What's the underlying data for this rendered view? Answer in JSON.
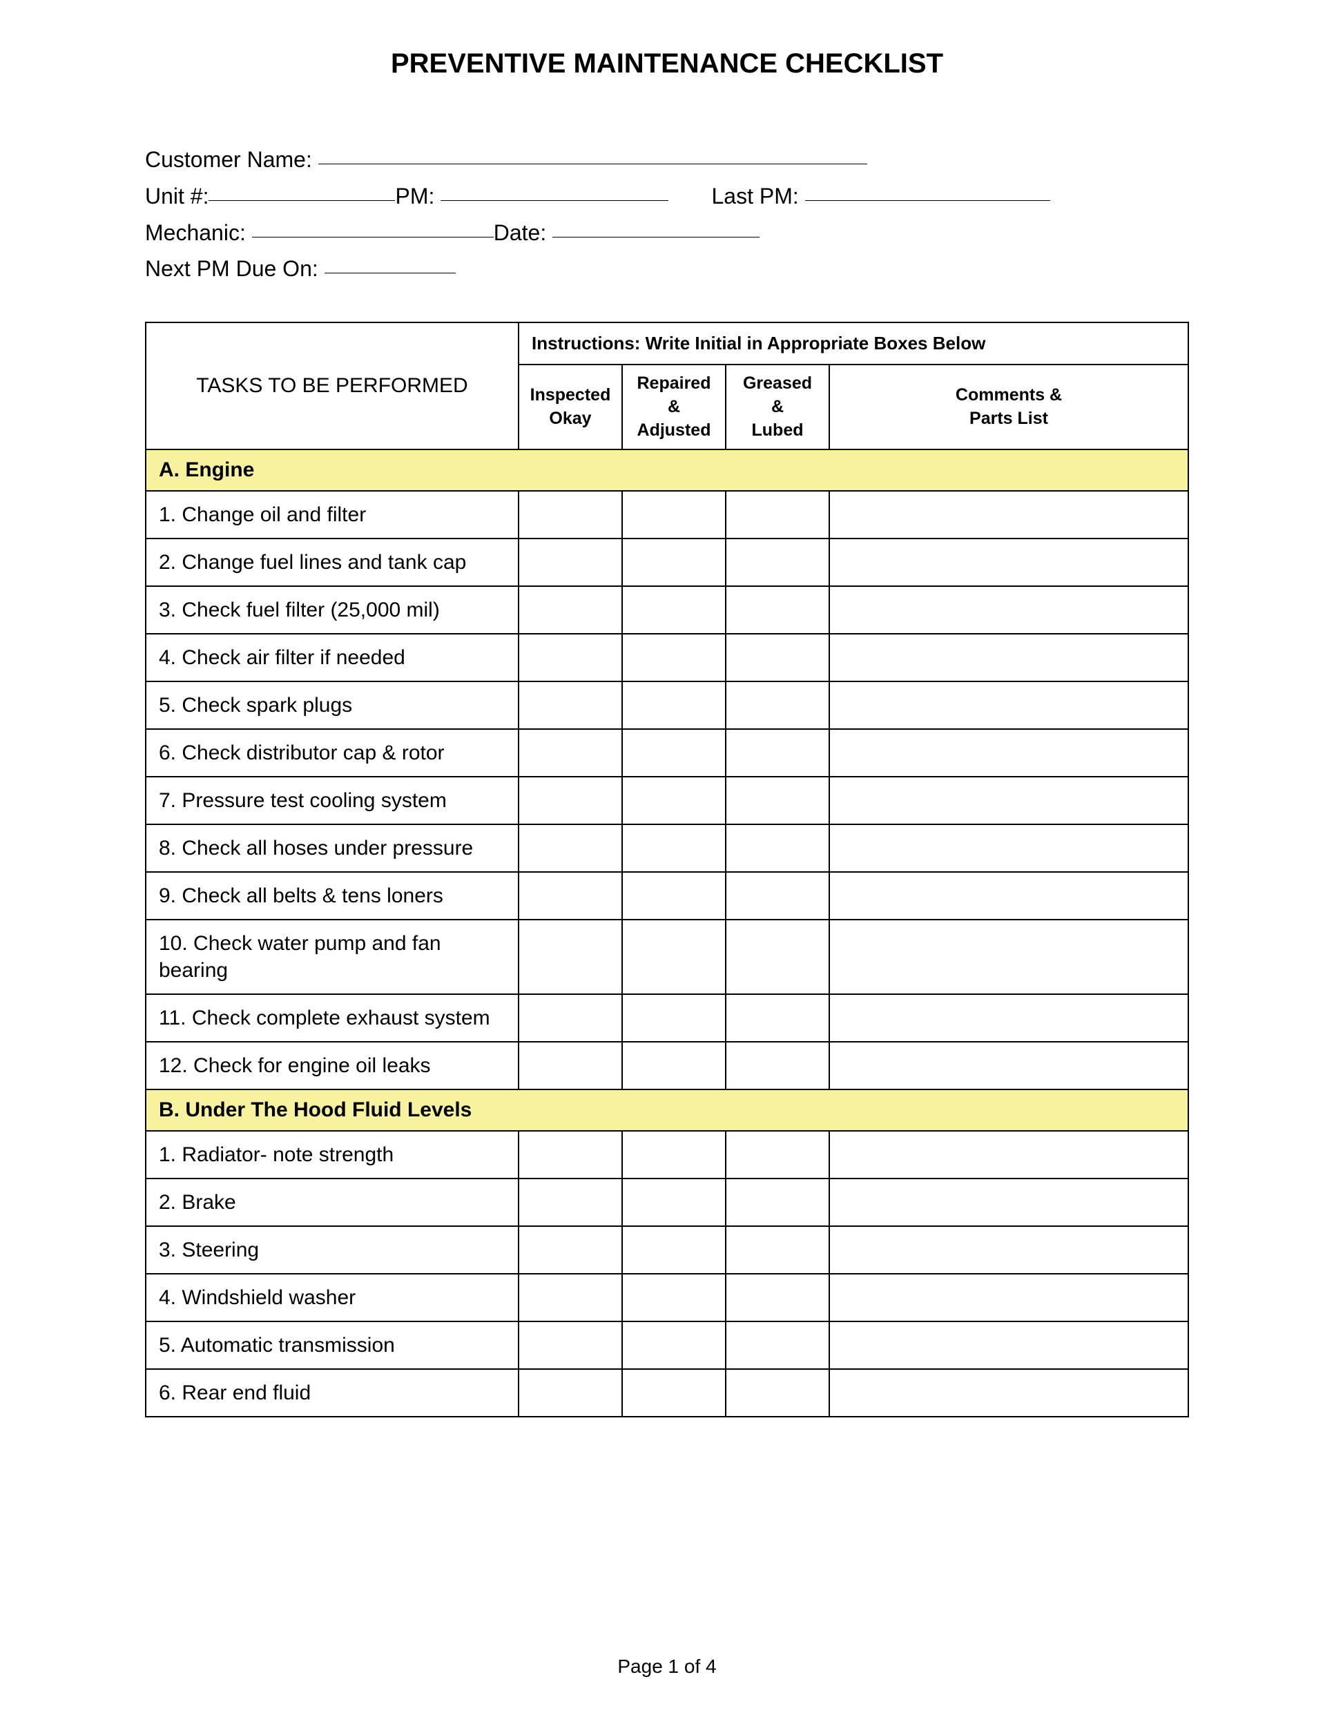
{
  "title": "PREVENTIVE MAINTENANCE CHECKLIST",
  "form": {
    "customer_name_label": "Customer Name: ",
    "unit_label": "Unit #:",
    "pm_label": "PM: ",
    "last_pm_label": "Last PM: ",
    "mechanic_label": "Mechanic: ",
    "date_label": "Date: ",
    "next_pm_label": "Next PM Due On: "
  },
  "table": {
    "instructions": "Instructions:  Write Initial in Appropriate Boxes Below",
    "header_tasks": "TASKS TO BE PERFORMED",
    "header_inspected_l1": "Inspected",
    "header_inspected_l2": "Okay",
    "header_repaired_l1": "Repaired",
    "header_repaired_l2": "&",
    "header_repaired_l3": "Adjusted",
    "header_greased_l1": "Greased",
    "header_greased_l2": "&",
    "header_greased_l3": "Lubed",
    "header_comments_l1": "Comments &",
    "header_comments_l2": "Parts List",
    "sections": [
      {
        "heading": "A. Engine",
        "items": [
          "1.  Change oil and filter",
          "2.  Change fuel lines and tank cap",
          "3.  Check fuel filter (25,000 mil)",
          "4.  Check air filter if needed",
          "5.  Check spark plugs",
          "6.  Check distributor cap & rotor",
          "7.  Pressure test cooling system",
          "8. Check all hoses under pressure",
          "9.  Check all belts & tens loners",
          "10. Check water pump and fan bearing",
          "11. Check complete exhaust system",
          "12. Check for engine oil leaks"
        ]
      },
      {
        "heading": "B. Under The Hood Fluid Levels",
        "items": [
          "1. Radiator- note strength",
          "2. Brake",
          "3. Steering",
          "4. Windshield washer",
          "5. Automatic transmission",
          "6. Rear end fluid"
        ]
      }
    ]
  },
  "footer": "Page 1 of 4",
  "style": {
    "section_bg": "#f7f29e",
    "border_color": "#000000",
    "underline_widths": {
      "customer_name": 795,
      "unit": 270,
      "pm": 330,
      "last_pm": 355,
      "mechanic": 350,
      "date": 300,
      "next_pm": 190
    }
  }
}
